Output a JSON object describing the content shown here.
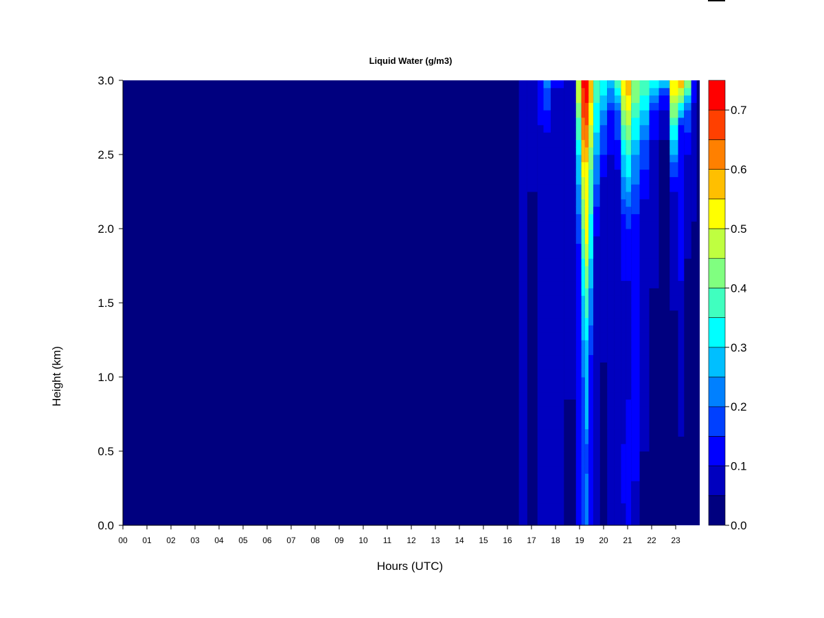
{
  "chart_data": {
    "type": "heatmap",
    "title": "Liquid Water (g/m3)",
    "xlabel": "Hours (UTC)",
    "ylabel": "Height (km)",
    "x_range": [
      0,
      24
    ],
    "y_range": [
      0,
      3.0
    ],
    "x_ticks": [
      0,
      1,
      2,
      3,
      4,
      5,
      6,
      7,
      8,
      9,
      10,
      11,
      12,
      13,
      14,
      15,
      16,
      17,
      18,
      19,
      20,
      21,
      22,
      23
    ],
    "x_tick_labels": [
      "00",
      "01",
      "02",
      "03",
      "04",
      "05",
      "06",
      "07",
      "08",
      "09",
      "10",
      "11",
      "12",
      "13",
      "14",
      "15",
      "16",
      "17",
      "18",
      "19",
      "20",
      "21",
      "22",
      "23"
    ],
    "y_ticks": [
      0.0,
      0.5,
      1.0,
      1.5,
      2.0,
      2.5,
      3.0
    ],
    "y_tick_labels": [
      "0.0",
      "0.5",
      "1.0",
      "1.5",
      "2.0",
      "2.5",
      "3.0"
    ],
    "colorbar": {
      "levels": [
        0.0,
        0.05,
        0.1,
        0.15,
        0.2,
        0.25,
        0.3,
        0.35,
        0.4,
        0.45,
        0.5,
        0.55,
        0.6,
        0.65,
        0.7,
        0.75
      ],
      "colors": [
        "#00007f",
        "#0000bf",
        "#0000ff",
        "#0040ff",
        "#0080ff",
        "#00bfff",
        "#00ffff",
        "#40ffbf",
        "#80ff80",
        "#bfff40",
        "#ffff00",
        "#ffbf00",
        "#ff8000",
        "#ff4000",
        "#ff0000",
        "#bf0000",
        "#7f0000"
      ],
      "tick_values": [
        0.0,
        0.1,
        0.2,
        0.3,
        0.4,
        0.5,
        0.6,
        0.7
      ],
      "tick_labels": [
        "0.0",
        "0.1",
        "0.2",
        "0.3",
        "0.4",
        "0.5",
        "0.6",
        "0.7"
      ]
    },
    "hour_columns": [
      {
        "hour": 16.55,
        "profile": [
          [
            0.4,
            0.06
          ],
          [
            0.6,
            0.06
          ]
        ]
      },
      {
        "hour": 17.1,
        "profile": [
          [
            0.0,
            0.02
          ],
          [
            3.0,
            0.06
          ]
        ]
      },
      {
        "hour": 17.4,
        "profile": [
          [
            2.5,
            0.06
          ],
          [
            3.0,
            0.15
          ]
        ]
      },
      {
        "hour": 17.6,
        "profile": [
          [
            2.6,
            0.08
          ],
          [
            3.0,
            0.22
          ]
        ]
      },
      {
        "hour": 18.0,
        "profile": [
          [
            2.9,
            0.08
          ],
          [
            3.0,
            0.12
          ]
        ]
      },
      {
        "hour": 18.7,
        "profile": [
          [
            0.0,
            0.03
          ],
          [
            3.0,
            0.1
          ]
        ]
      },
      {
        "hour": 19.0,
        "profile": [
          [
            0.0,
            0.1
          ],
          [
            1.0,
            0.12
          ],
          [
            1.8,
            0.12
          ],
          [
            2.5,
            0.3
          ],
          [
            3.0,
            0.5
          ]
        ]
      },
      {
        "hour": 19.15,
        "profile": [
          [
            0.0,
            0.18
          ],
          [
            0.5,
            0.15
          ],
          [
            1.0,
            0.2
          ],
          [
            1.8,
            0.35
          ],
          [
            2.2,
            0.45
          ],
          [
            2.6,
            0.6
          ],
          [
            3.0,
            0.72
          ]
        ]
      },
      {
        "hour": 19.3,
        "profile": [
          [
            0.0,
            0.25
          ],
          [
            0.5,
            0.18
          ],
          [
            0.8,
            0.3
          ],
          [
            1.1,
            0.25
          ],
          [
            1.9,
            0.5
          ],
          [
            2.3,
            0.5
          ],
          [
            2.7,
            0.65
          ],
          [
            3.0,
            0.75
          ]
        ]
      },
      {
        "hour": 19.45,
        "profile": [
          [
            0.0,
            0.15
          ],
          [
            1.0,
            0.12
          ],
          [
            1.8,
            0.3
          ],
          [
            2.4,
            0.4
          ],
          [
            3.0,
            0.6
          ]
        ]
      },
      {
        "hour": 19.7,
        "profile": [
          [
            0.0,
            0.06
          ],
          [
            1.9,
            0.08
          ],
          [
            2.5,
            0.25
          ],
          [
            3.0,
            0.4
          ]
        ]
      },
      {
        "hour": 20.0,
        "profile": [
          [
            0.0,
            0.04
          ],
          [
            2.2,
            0.06
          ],
          [
            2.7,
            0.2
          ],
          [
            3.0,
            0.35
          ]
        ]
      },
      {
        "hour": 20.3,
        "profile": [
          [
            0.0,
            0.05
          ],
          [
            2.4,
            0.08
          ],
          [
            2.8,
            0.15
          ],
          [
            3.0,
            0.3
          ]
        ]
      },
      {
        "hour": 20.6,
        "profile": [
          [
            0.0,
            0.05
          ],
          [
            2.3,
            0.08
          ],
          [
            2.8,
            0.2
          ],
          [
            3.0,
            0.38
          ]
        ]
      },
      {
        "hour": 20.85,
        "profile": [
          [
            0.0,
            0.08
          ],
          [
            0.3,
            0.12
          ],
          [
            1.0,
            0.06
          ],
          [
            2.0,
            0.12
          ],
          [
            2.5,
            0.3
          ],
          [
            3.0,
            0.55
          ]
        ]
      },
      {
        "hour": 21.0,
        "profile": [
          [
            0.0,
            0.1
          ],
          [
            0.2,
            0.12
          ],
          [
            1.5,
            0.08
          ],
          [
            2.0,
            0.15
          ],
          [
            2.5,
            0.35
          ],
          [
            3.0,
            0.6
          ]
        ]
      },
      {
        "hour": 21.3,
        "profile": [
          [
            0.0,
            0.08
          ],
          [
            0.3,
            0.1
          ],
          [
            2.0,
            0.12
          ],
          [
            2.5,
            0.25
          ],
          [
            3.0,
            0.45
          ]
        ]
      },
      {
        "hour": 21.7,
        "profile": [
          [
            0.0,
            0.04
          ],
          [
            2.1,
            0.08
          ],
          [
            2.6,
            0.2
          ],
          [
            3.0,
            0.4
          ]
        ]
      },
      {
        "hour": 22.1,
        "profile": [
          [
            0.0,
            0.03
          ],
          [
            2.4,
            0.06
          ],
          [
            2.8,
            0.15
          ],
          [
            3.0,
            0.35
          ]
        ]
      },
      {
        "hour": 22.5,
        "profile": [
          [
            0.0,
            0.02
          ],
          [
            2.6,
            0.05
          ],
          [
            2.9,
            0.12
          ],
          [
            3.0,
            0.3
          ]
        ]
      },
      {
        "hour": 23.0,
        "profile": [
          [
            0.0,
            0.03
          ],
          [
            2.2,
            0.06
          ],
          [
            2.6,
            0.3
          ],
          [
            3.0,
            0.55
          ]
        ]
      },
      {
        "hour": 23.2,
        "profile": [
          [
            0.0,
            0.02
          ],
          [
            2.7,
            0.15
          ],
          [
            3.0,
            0.6
          ]
        ]
      },
      {
        "hour": 23.5,
        "profile": [
          [
            0.0,
            0.02
          ],
          [
            2.4,
            0.06
          ],
          [
            2.8,
            0.2
          ],
          [
            3.0,
            0.45
          ]
        ]
      },
      {
        "hour": 23.8,
        "profile": [
          [
            0.0,
            0.02
          ],
          [
            2.7,
            0.06
          ],
          [
            3.0,
            0.15
          ]
        ]
      }
    ]
  }
}
